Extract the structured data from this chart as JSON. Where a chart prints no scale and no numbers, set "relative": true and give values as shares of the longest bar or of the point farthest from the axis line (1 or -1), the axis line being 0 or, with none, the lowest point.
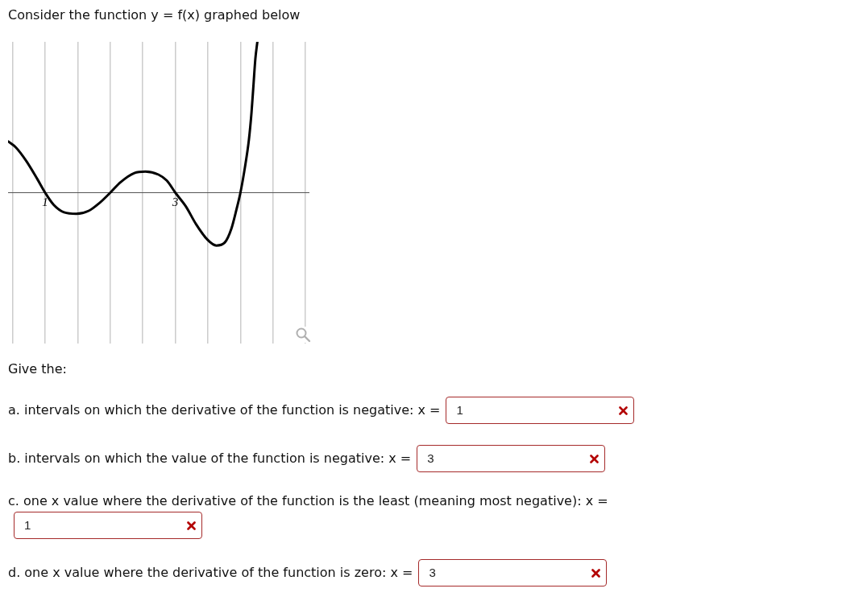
{
  "chart_data": {
    "type": "line",
    "title": "Consider the function y = f(x) graphed below",
    "x": [
      0.43,
      0.55,
      0.71,
      0.88,
      1.0,
      1.13,
      1.29,
      1.48,
      1.67,
      1.83,
      2.0,
      2.16,
      2.37,
      2.54,
      2.74,
      2.87,
      3.0,
      3.16,
      3.32,
      3.49,
      3.63,
      3.76,
      3.86,
      3.94,
      4.0,
      4.07,
      4.13,
      4.17,
      4.2,
      4.23,
      4.26
    ],
    "relative": true,
    "series": [
      {
        "color": "#000000",
        "values": [
          0.34,
          0.3,
          0.21,
          0.09,
          0,
          -0.08,
          -0.13,
          -0.14,
          -0.12,
          -0.07,
          0,
          0.07,
          0.13,
          0.14,
          0.12,
          0.08,
          0,
          -0.09,
          -0.21,
          -0.31,
          -0.35,
          -0.33,
          -0.24,
          -0.11,
          0,
          0.17,
          0.35,
          0.53,
          0.71,
          0.89,
          1
        ]
      }
    ],
    "xlim": [
      0.43,
      5.06
    ],
    "xticks": [
      {
        "value": 0.5,
        "label": null
      },
      1,
      {
        "value": 1.5,
        "label": null
      },
      {
        "value": 2,
        "label": null
      },
      {
        "value": 2.5,
        "label": null
      },
      3,
      {
        "value": 3.5,
        "label": null
      },
      {
        "value": 4,
        "label": null
      },
      {
        "value": 4.5,
        "label": null
      },
      {
        "value": 5,
        "label": null
      }
    ],
    "grid": "x",
    "marker": "none",
    "line_style": "solid",
    "annotations": [
      "Give the:",
      "a. intervals on which the derivative of the function is negative: x =",
      "1",
      "b. intervals on which the value of the function is negative: x =",
      "3",
      "c. one x value where the derivative of the function is the least (meaning most negative): x =",
      "1",
      "d. one x value where the derivative of the function is zero: x =",
      "3"
    ]
  }
}
